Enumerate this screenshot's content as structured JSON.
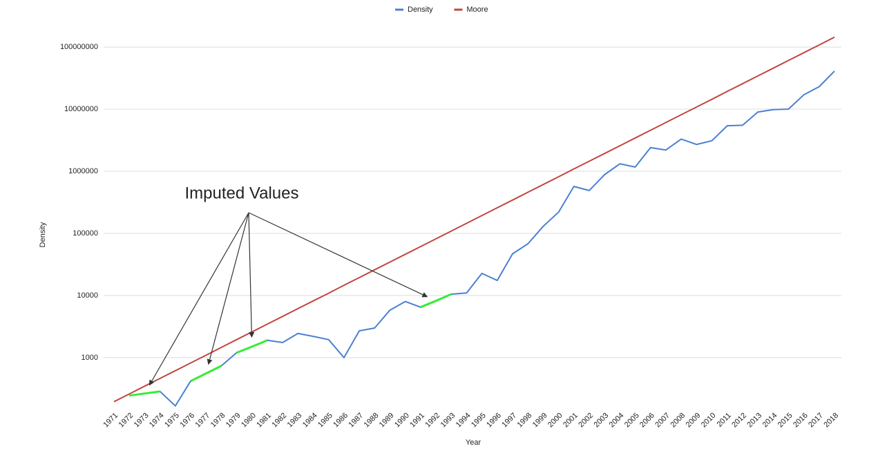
{
  "chart_data": {
    "type": "line",
    "x_label": "Year",
    "y_label": "Density",
    "log_scale": true,
    "grid": true,
    "legend": "top",
    "categories": [
      "1971",
      "1972",
      "1973",
      "1974",
      "1975",
      "1976",
      "1977",
      "1978",
      "1979",
      "1980",
      "1981",
      "1982",
      "1983",
      "1984",
      "1985",
      "1986",
      "1987",
      "1988",
      "1989",
      "1990",
      "1991",
      "1992",
      "1993",
      "1994",
      "1995",
      "1996",
      "1997",
      "1998",
      "1999",
      "2000",
      "2001",
      "2002",
      "2003",
      "2004",
      "2005",
      "2006",
      "2007",
      "2008",
      "2009",
      "2010",
      "2011",
      "2012",
      "2013",
      "2014",
      "2015",
      "2016",
      "2017",
      "2018"
    ],
    "ylim": [
      150,
      200000000
    ],
    "yticks": [
      1000,
      10000,
      100000,
      1000000,
      10000000,
      100000000
    ],
    "series": [
      {
        "name": "Density",
        "color": "#4a7fd4",
        "values": [
          null,
          245,
          265,
          285,
          167,
          420,
          555,
          735,
          1200,
          1500,
          1900,
          1750,
          2450,
          2200,
          1950,
          1000,
          2700,
          3000,
          5800,
          8000,
          6500,
          8200,
          10500,
          11000,
          22700,
          17500,
          47000,
          68000,
          130000,
          220000,
          570000,
          490000,
          880000,
          1320000,
          1170000,
          2400000,
          2200000,
          3300000,
          2700000,
          3100000,
          5400000,
          5500000,
          9000000,
          9800000,
          10000000,
          17000000,
          23000000,
          41000000
        ]
      },
      {
        "name": "Moore",
        "color": "#c2463f",
        "values": [
          195,
          260,
          347,
          462,
          616,
          821,
          1090,
          1460,
          1950,
          2590,
          3460,
          4610,
          6150,
          8190,
          10900,
          14600,
          19400,
          25900,
          34500,
          46000,
          61300,
          81700,
          109000,
          145000,
          194000,
          258000,
          344000,
          459000,
          611000,
          815000,
          1090000,
          1450000,
          1930000,
          2570000,
          3430000,
          4570000,
          6100000,
          8130000,
          10800000,
          14400000,
          19300000,
          25700000,
          34200000,
          45600000,
          60800000,
          81100000,
          108000000,
          144000000
        ]
      }
    ],
    "annotations": [
      {
        "text": "Imputed Values",
        "color": "#33ee33",
        "points": [
          "1973",
          "1977",
          "1980",
          "1992"
        ]
      }
    ]
  }
}
